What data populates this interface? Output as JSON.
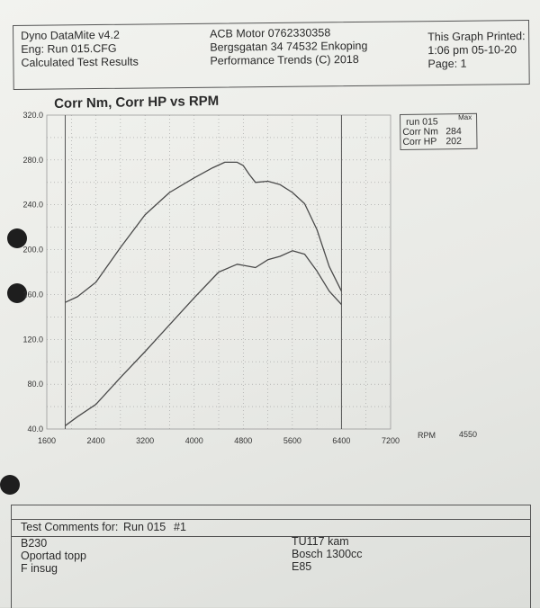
{
  "header": {
    "left": [
      "Dyno DataMite v4.2",
      "Eng: Run 015.CFG",
      "Calculated Test Results"
    ],
    "center": [
      "ACB Motor 0762330358",
      "Bergsgatan 34 74532 Enkoping",
      "Performance Trends (C) 2018"
    ],
    "right": [
      "This Graph Printed:",
      "1:06 pm 05-10-20",
      "Page: 1"
    ]
  },
  "legend": {
    "run": "run 015",
    "max_label": "Max",
    "rows": [
      {
        "label": "Corr Nm",
        "value": "284"
      },
      {
        "label": "Corr HP",
        "value": "202"
      }
    ]
  },
  "axis_extras": {
    "rpm_label": "RPM",
    "rpm_value": "4550"
  },
  "comments": {
    "heading_label": "Test Comments for:",
    "heading_run": "Run 015",
    "heading_num": "#1",
    "left": [
      "B230",
      "Oportad topp",
      "F insug"
    ],
    "right": [
      "TU117 kam",
      "Bosch 1300cc",
      "E85"
    ]
  },
  "chart_data": {
    "type": "line",
    "title": "Corr Nm, Corr HP vs RPM",
    "xlabel": "",
    "ylabel": "",
    "xlim": [
      1600,
      7200
    ],
    "ylim": [
      40,
      320
    ],
    "xticks": [
      "1600",
      "2400",
      "3200",
      "4000",
      "4800",
      "5600",
      "6400",
      "7200"
    ],
    "yticks": [
      "40.0",
      "80.0",
      "120.0",
      "160.0",
      "200.0",
      "240.0",
      "280.0",
      "320.0"
    ],
    "grid": true,
    "series": [
      {
        "name": "Corr Nm",
        "x": [
          1900,
          2100,
          2400,
          2800,
          3200,
          3600,
          4000,
          4300,
          4500,
          4700,
          4800,
          4900,
          5000,
          5200,
          5400,
          5600,
          5800,
          6000,
          6200,
          6400
        ],
        "y": [
          153,
          158,
          171,
          202,
          231,
          251,
          264,
          273,
          278,
          278,
          275,
          267,
          260,
          261,
          258,
          251,
          241,
          218,
          185,
          163
        ]
      },
      {
        "name": "Corr HP",
        "x": [
          1900,
          2100,
          2400,
          2800,
          3200,
          3600,
          4000,
          4400,
          4700,
          4800,
          5000,
          5200,
          5400,
          5600,
          5800,
          6000,
          6200,
          6400
        ],
        "y": [
          43,
          51,
          62,
          86,
          109,
          133,
          157,
          180,
          187,
          186,
          184,
          191,
          194,
          199,
          196,
          181,
          163,
          151
        ]
      }
    ],
    "vlines": [
      1900,
      6400
    ],
    "colors": {
      "line": "#4a4a4a",
      "grid": "#9a9a9a"
    }
  }
}
